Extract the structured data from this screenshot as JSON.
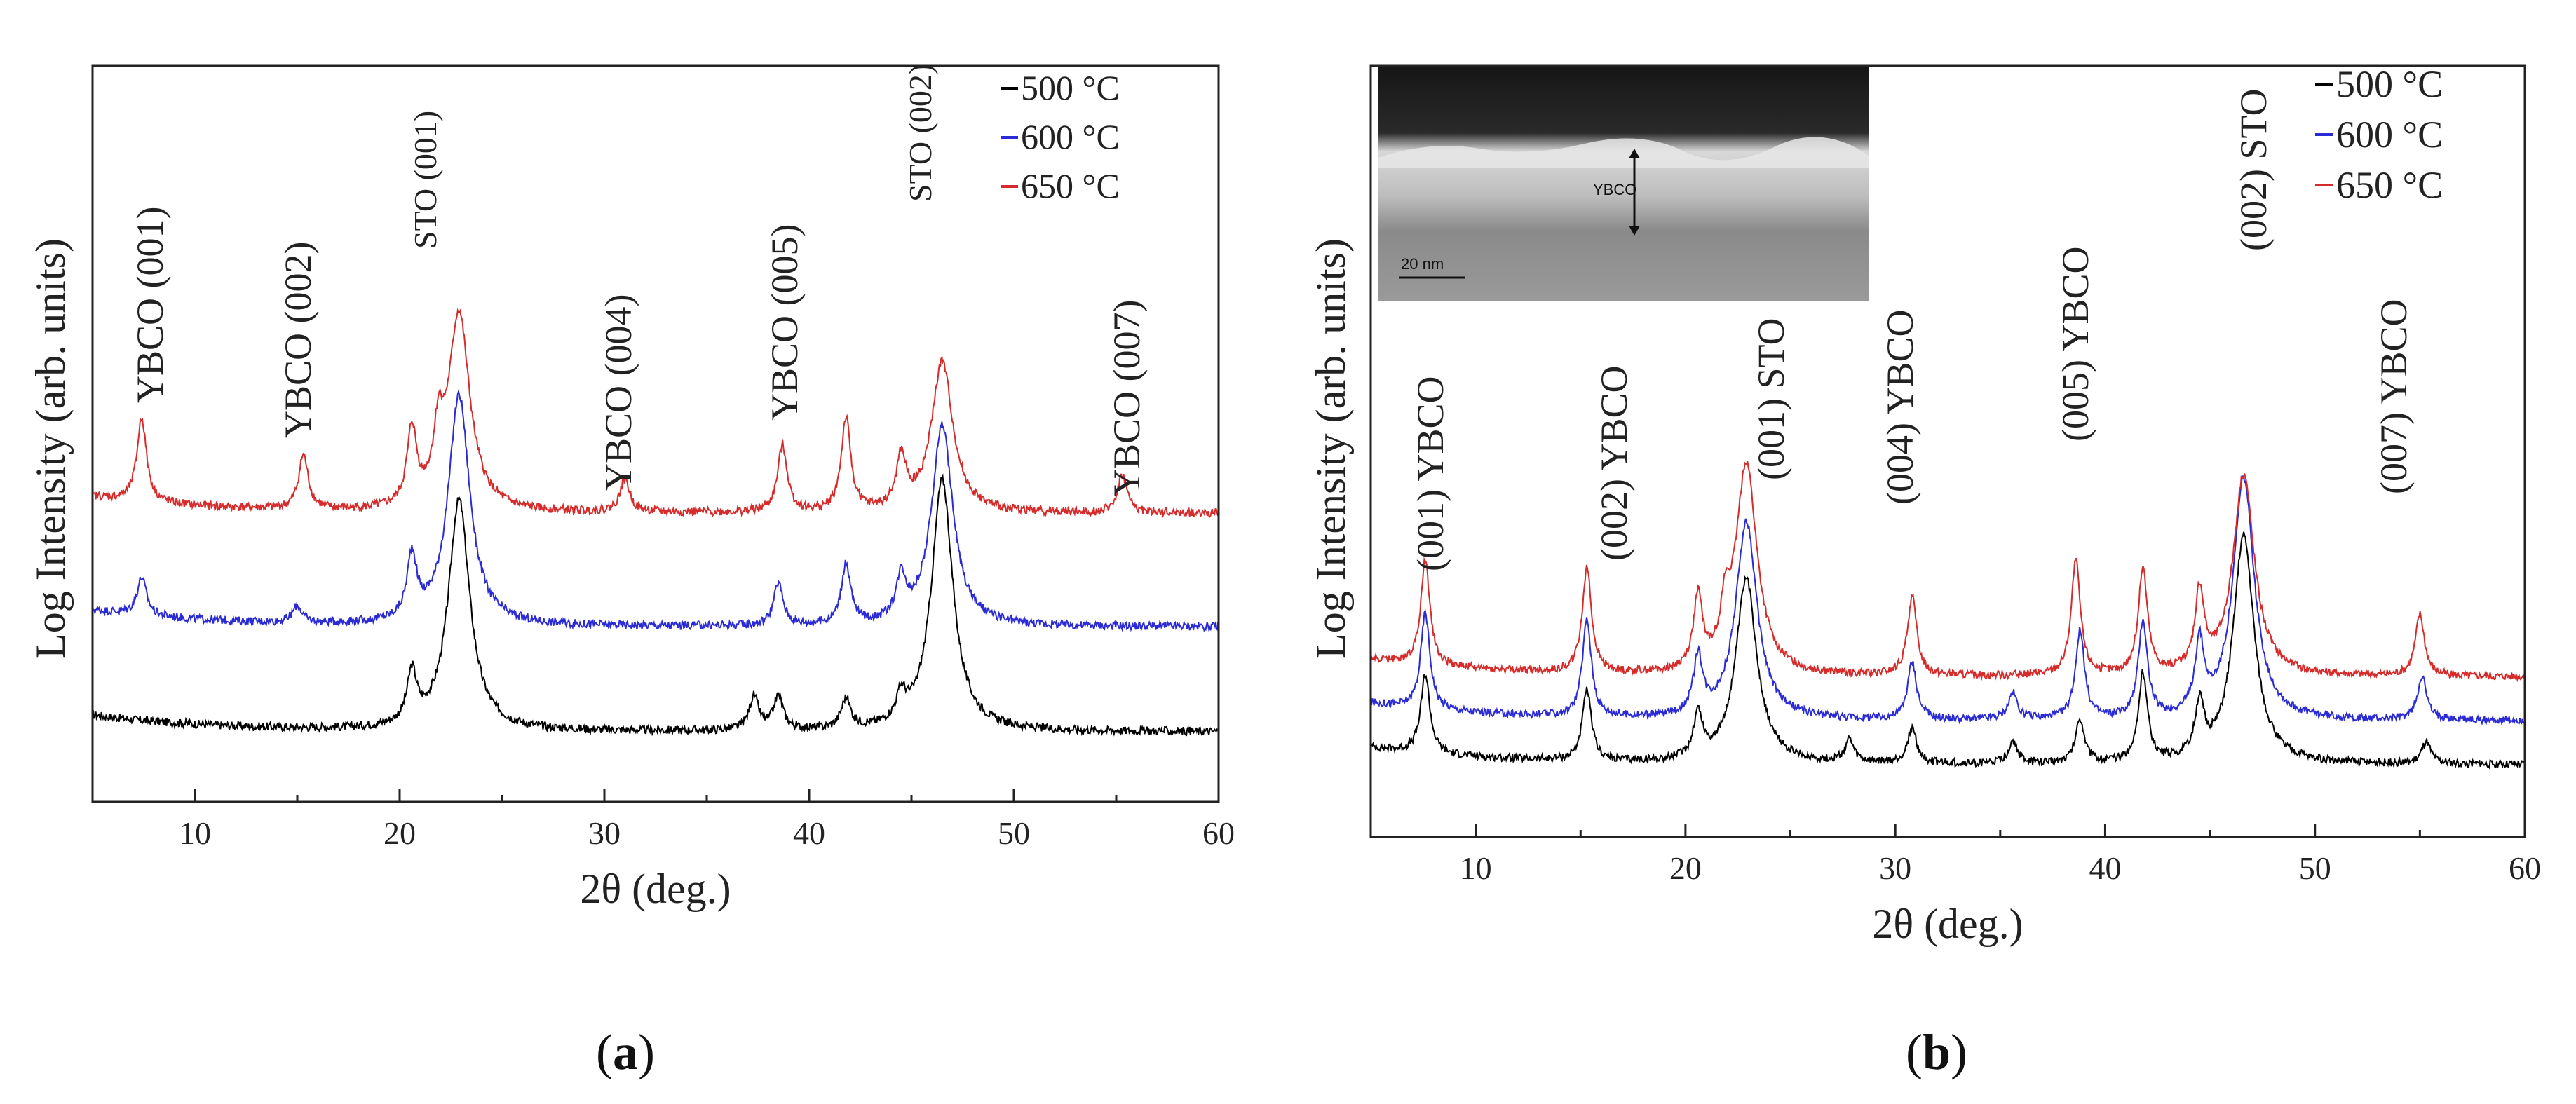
{
  "chart_data": [
    {
      "panel": "a",
      "type": "line",
      "xlabel": "2θ (deg.)",
      "ylabel": "Log Intensity (arb. units)",
      "xlim": [
        5,
        60
      ],
      "x_ticks": [
        "10",
        "20",
        "30",
        "40",
        "50",
        "60"
      ],
      "series": [
        {
          "name": "500 °C",
          "color": "#000000",
          "base": 0.1,
          "peaks": [
            [
              20.6,
              0.12
            ],
            [
              22.9,
              0.55
            ],
            [
              37.3,
              0.08
            ],
            [
              38.5,
              0.08
            ],
            [
              41.8,
              0.07
            ],
            [
              44.5,
              0.06
            ],
            [
              46.5,
              0.6
            ]
          ]
        },
        {
          "name": "600 °C",
          "color": "#2b2bd6",
          "base": 0.35,
          "peaks": [
            [
              7.4,
              0.09
            ],
            [
              15.0,
              0.04
            ],
            [
              20.6,
              0.15
            ],
            [
              22.9,
              0.55
            ],
            [
              38.5,
              0.1
            ],
            [
              41.8,
              0.14
            ],
            [
              44.5,
              0.1
            ],
            [
              46.5,
              0.48
            ]
          ]
        },
        {
          "name": "650 °C",
          "color": "#d62b2b",
          "base": 0.62,
          "peaks": [
            [
              7.4,
              0.2
            ],
            [
              15.3,
              0.13
            ],
            [
              20.6,
              0.18
            ],
            [
              21.9,
              0.14
            ],
            [
              22.9,
              0.47
            ],
            [
              31.0,
              0.08
            ],
            [
              38.7,
              0.16
            ],
            [
              41.8,
              0.22
            ],
            [
              44.5,
              0.12
            ],
            [
              46.5,
              0.36
            ],
            [
              55.3,
              0.09
            ]
          ]
        }
      ],
      "annotations": [
        "YBCO (001)",
        "YBCO (002)",
        "STO (001)",
        "YBCO (004)",
        "YBCO (005)",
        "STO (002)",
        "YBCO (007)"
      ],
      "legend": [
        "500 °C",
        "600 °C",
        "650 °C"
      ],
      "legend_position": "top-right"
    },
    {
      "panel": "b",
      "type": "line",
      "xlabel": "2θ (deg.)",
      "ylabel": "Log Intensity (arb. units)",
      "xlim": [
        5,
        60
      ],
      "x_ticks": [
        "10",
        "20",
        "30",
        "40",
        "50",
        "60"
      ],
      "series": [
        {
          "name": "500 °C",
          "color": "#000000",
          "base": 0.1,
          "peaks": [
            [
              7.6,
              0.18
            ],
            [
              15.3,
              0.16
            ],
            [
              20.6,
              0.1
            ],
            [
              22.9,
              0.42
            ],
            [
              27.8,
              0.05
            ],
            [
              30.8,
              0.08
            ],
            [
              35.6,
              0.05
            ],
            [
              38.8,
              0.1
            ],
            [
              41.8,
              0.2
            ],
            [
              44.5,
              0.12
            ],
            [
              46.6,
              0.52
            ],
            [
              55.3,
              0.05
            ]
          ]
        },
        {
          "name": "600 °C",
          "color": "#2b2bd6",
          "base": 0.2,
          "peaks": [
            [
              7.6,
              0.22
            ],
            [
              15.3,
              0.22
            ],
            [
              20.6,
              0.13
            ],
            [
              22.9,
              0.45
            ],
            [
              30.8,
              0.13
            ],
            [
              35.6,
              0.06
            ],
            [
              38.8,
              0.2
            ],
            [
              41.8,
              0.22
            ],
            [
              44.5,
              0.16
            ],
            [
              46.6,
              0.55
            ],
            [
              55.1,
              0.1
            ]
          ]
        },
        {
          "name": "650 °C",
          "color": "#d62b2b",
          "base": 0.3,
          "peaks": [
            [
              7.6,
              0.24
            ],
            [
              15.3,
              0.24
            ],
            [
              20.6,
              0.16
            ],
            [
              21.9,
              0.1
            ],
            [
              22.9,
              0.48
            ],
            [
              30.8,
              0.18
            ],
            [
              38.6,
              0.26
            ],
            [
              41.8,
              0.24
            ],
            [
              44.5,
              0.18
            ],
            [
              46.6,
              0.46
            ],
            [
              55.0,
              0.14
            ]
          ]
        }
      ],
      "annotations": [
        "(001) YBCO",
        "(002) YBCO",
        "(001) STO",
        "(004) YBCO",
        "(005) YBCO",
        "(002) STO",
        "(007) YBCO"
      ],
      "legend": [
        "500 °C",
        "600 °C",
        "650 °C"
      ],
      "legend_position": "top-right",
      "inset": {
        "label": "YBCO",
        "scale_bar": "20 nm"
      }
    }
  ],
  "captions": {
    "a": "a",
    "b": "b"
  }
}
